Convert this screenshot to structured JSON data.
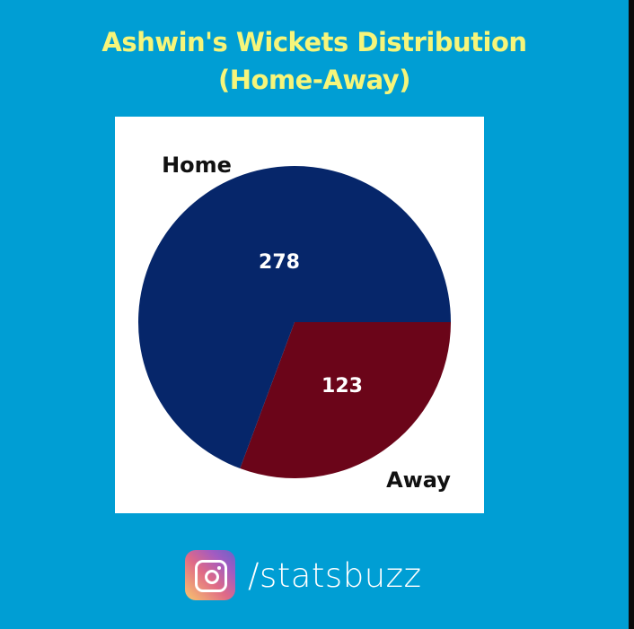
{
  "colors": {
    "background": "#009ed4",
    "title": "#f6f57a",
    "home": "#06266a",
    "away": "#6b0519"
  },
  "header": {
    "title_line1": "Ashwin's Wickets Distribution",
    "title_line2": "(Home-Away)"
  },
  "chart_data": {
    "type": "pie",
    "title": "Ashwin's Wickets Distribution (Home-Away)",
    "labels": [
      "Home",
      "Away"
    ],
    "values": [
      278,
      123
    ],
    "colors": [
      "#06266a",
      "#6b0519"
    ],
    "data_labels": [
      "278",
      "123"
    ]
  },
  "footer": {
    "icon": "instagram-icon",
    "handle": "/statsbuzz"
  }
}
